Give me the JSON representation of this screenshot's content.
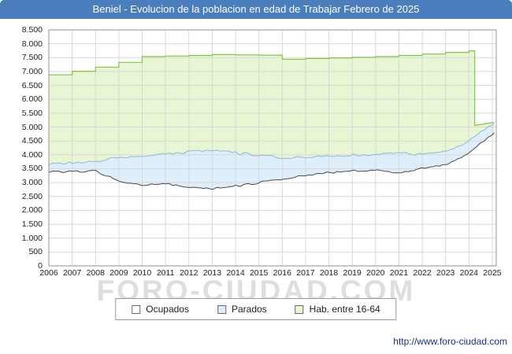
{
  "title": "Beniel - Evolucion de la poblacion en edad de Trabajar Febrero de 2025",
  "watermark": "FORO-CIUDAD.COM",
  "source_url": "http://www.foro-ciudad.com",
  "colors": {
    "titlebar_bg": "#4a7ebc",
    "titlebar_text": "#ffffff",
    "plot_background": "#ffffff",
    "grid": "#d8d8d8",
    "plot_border": "#909090",
    "tick_text": "#222222",
    "watermark": "#dedede",
    "url_text": "#13337f"
  },
  "legend": [
    {
      "label": "Ocupados",
      "series": "ocupados"
    },
    {
      "label": "Parados",
      "series": "parados"
    },
    {
      "label": "Hab. entre 16-64",
      "series": "hab"
    }
  ],
  "chart_data": {
    "type": "area",
    "title": "Beniel - Evolucion de la poblacion en edad de Trabajar Febrero de 2025",
    "ylabel": "",
    "xlabel": "",
    "ylim": [
      0,
      8500
    ],
    "ytick_step": 500,
    "x_years": [
      2006,
      2007,
      2008,
      2009,
      2010,
      2011,
      2012,
      2013,
      2014,
      2015,
      2016,
      2017,
      2018,
      2019,
      2020,
      2021,
      2022,
      2023,
      2024,
      2025
    ],
    "x_last": 2025.083,
    "x_axis_end": 2025.17,
    "grid": true,
    "legend_position": "bottom-center",
    "resolution": "monthly (values estimated; anchors given at January of each year)",
    "series": [
      {
        "key": "ocupados",
        "name": "Ocupados",
        "fill": "#ffffff",
        "line": "#4a4a4a",
        "anchors_jan_by_year": [
          3420,
          3380,
          3420,
          3050,
          2920,
          2960,
          2830,
          2790,
          2870,
          2990,
          3130,
          3260,
          3360,
          3430,
          3450,
          3330,
          3520,
          3650,
          4050,
          4750
        ]
      },
      {
        "key": "parados",
        "name": "Parados",
        "stacked_on": "ocupados",
        "fill": "#dfeefb",
        "line": "#8fb8e0",
        "anchors_jan_by_year": [
          260,
          320,
          340,
          870,
          1040,
          1050,
          1290,
          1390,
          1210,
          990,
          760,
          650,
          590,
          560,
          560,
          730,
          500,
          480,
          430,
          330
        ]
      },
      {
        "key": "hab",
        "name": "Hab. entre 16-64",
        "fill": "#e8f6d4",
        "line": "#84c442",
        "annual_steps_from_2006": [
          6880,
          7010,
          7160,
          7330,
          7540,
          7560,
          7580,
          7610,
          7600,
          7590,
          7440,
          7470,
          7490,
          7510,
          7540,
          7580,
          7630,
          7690,
          7745
        ],
        "tail": {
          "drop_t": 2024.25,
          "drop_to": 5060,
          "end_value": 5170
        }
      }
    ]
  }
}
